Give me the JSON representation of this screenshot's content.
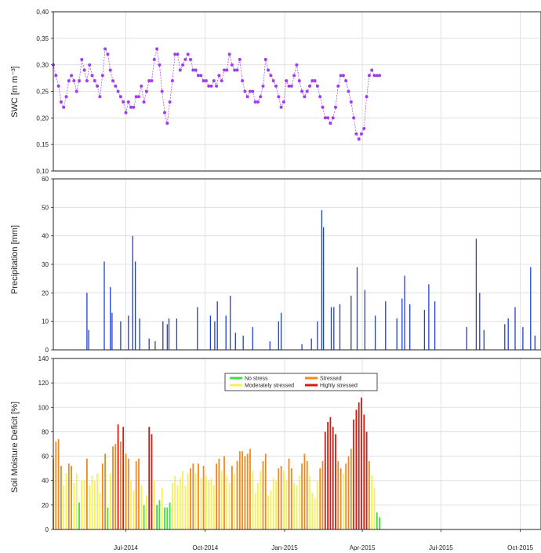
{
  "chart_data": [
    {
      "type": "scatter",
      "ylabel": "SWC [m m⁻³]",
      "ylim": [
        0.1,
        0.4
      ],
      "yticks": [
        "0,10",
        "0,15",
        "0,20",
        "0,25",
        "0,30",
        "0,35",
        "0,40"
      ],
      "xlim": [
        "2014-04-08",
        "2015-10-25"
      ],
      "color": "#a23cf0",
      "series": [
        {
          "step_days": 3,
          "values": [
            0.3,
            0.28,
            0.26,
            0.23,
            0.22,
            0.24,
            0.27,
            0.28,
            0.27,
            0.25,
            0.27,
            0.31,
            0.29,
            0.27,
            0.3,
            0.28,
            0.27,
            0.26,
            0.24,
            0.28,
            0.33,
            0.32,
            0.29,
            0.27,
            0.26,
            0.25,
            0.24,
            0.23,
            0.21,
            0.23,
            0.22,
            0.22,
            0.24,
            0.24,
            0.26,
            0.23,
            0.25,
            0.27,
            0.27,
            0.31,
            0.33,
            0.3,
            0.25,
            0.21,
            0.19,
            0.23,
            0.27,
            0.32,
            0.32,
            0.29,
            0.3,
            0.31,
            0.32,
            0.31,
            0.29,
            0.29,
            0.28,
            0.28,
            0.27,
            0.27,
            0.26,
            0.26,
            0.27,
            0.26,
            0.28,
            0.27,
            0.29,
            0.29,
            0.32,
            0.3,
            0.29,
            0.29,
            0.31,
            0.27,
            0.25,
            0.24,
            0.25,
            0.25,
            0.23,
            0.23,
            0.24,
            0.26,
            0.31,
            0.29,
            0.28,
            0.27,
            0.26,
            0.24,
            0.22,
            0.23,
            0.27,
            0.26,
            0.26,
            0.28,
            0.3,
            0.27,
            0.25,
            0.24,
            0.25,
            0.26,
            0.27,
            0.27,
            0.26,
            0.24,
            0.22,
            0.2,
            0.2,
            0.19,
            0.2,
            0.22,
            0.26,
            0.28,
            0.28,
            0.27,
            0.25,
            0.23,
            0.2,
            0.17,
            0.16,
            0.17,
            0.18,
            0.24,
            0.28,
            0.29,
            0.28,
            0.28,
            0.28
          ]
        }
      ]
    },
    {
      "type": "bar",
      "ylabel": "Precipitation [mm]",
      "ylim": [
        0,
        60
      ],
      "yticks": [
        "0",
        "10",
        "20",
        "30",
        "40",
        "50",
        "60"
      ],
      "xlim": [
        "2014-04-08",
        "2015-10-25"
      ],
      "color": "#1f3fd0",
      "events": [
        [
          "2014-05-17",
          20
        ],
        [
          "2014-05-19",
          7
        ],
        [
          "2014-06-06",
          31
        ],
        [
          "2014-06-13",
          22
        ],
        [
          "2014-06-15",
          13
        ],
        [
          "2014-06-25",
          10
        ],
        [
          "2014-07-04",
          12
        ],
        [
          "2014-07-09",
          40
        ],
        [
          "2014-07-12",
          31
        ],
        [
          "2014-07-17",
          11
        ],
        [
          "2014-07-28",
          4
        ],
        [
          "2014-08-04",
          3
        ],
        [
          "2014-08-13",
          10
        ],
        [
          "2014-08-18",
          9
        ],
        [
          "2014-08-20",
          11
        ],
        [
          "2014-08-29",
          11
        ],
        [
          "2014-09-22",
          15
        ],
        [
          "2014-10-07",
          12
        ],
        [
          "2014-10-12",
          10
        ],
        [
          "2014-10-15",
          17
        ],
        [
          "2014-10-25",
          12
        ],
        [
          "2014-10-30",
          19
        ],
        [
          "2014-11-05",
          6
        ],
        [
          "2014-11-14",
          5
        ],
        [
          "2014-11-25",
          8
        ],
        [
          "2014-12-15",
          3
        ],
        [
          "2014-12-25",
          10
        ],
        [
          "2014-12-28",
          13
        ],
        [
          "2015-01-21",
          2
        ],
        [
          "2015-02-01",
          4
        ],
        [
          "2015-02-08",
          10
        ],
        [
          "2015-02-13",
          49
        ],
        [
          "2015-02-15",
          43
        ],
        [
          "2015-02-24",
          15
        ],
        [
          "2015-02-27",
          15
        ],
        [
          "2015-03-06",
          16
        ],
        [
          "2015-03-19",
          19
        ],
        [
          "2015-03-26",
          29
        ],
        [
          "2015-04-04",
          21
        ],
        [
          "2015-04-16",
          12
        ],
        [
          "2015-04-28",
          17
        ],
        [
          "2015-05-11",
          11
        ],
        [
          "2015-05-17",
          18
        ],
        [
          "2015-05-20",
          26
        ],
        [
          "2015-05-26",
          16
        ],
        [
          "2015-06-12",
          14
        ],
        [
          "2015-06-17",
          23
        ],
        [
          "2015-06-24",
          17
        ],
        [
          "2015-07-31",
          8
        ],
        [
          "2015-08-11",
          39
        ],
        [
          "2015-08-15",
          20
        ],
        [
          "2015-08-20",
          7
        ],
        [
          "2015-09-13",
          9
        ],
        [
          "2015-09-17",
          11
        ],
        [
          "2015-09-25",
          15
        ],
        [
          "2015-10-04",
          8
        ],
        [
          "2015-10-13",
          29
        ],
        [
          "2015-10-18",
          5
        ]
      ]
    },
    {
      "type": "bar",
      "ylabel": "Soil Moisture Deficit [%]",
      "ylim": [
        0,
        140
      ],
      "yticks": [
        "0",
        "20",
        "40",
        "60",
        "80",
        "100",
        "120",
        "140"
      ],
      "xlim": [
        "2014-04-08",
        "2015-10-25"
      ],
      "xticks": [
        {
          "date": "2014-07-01",
          "label": "Jul-2014"
        },
        {
          "date": "2014-10-01",
          "label": "Oct-2014"
        },
        {
          "date": "2015-01-01",
          "label": "Jan-2015"
        },
        {
          "date": "2015-04-01",
          "label": "Apr-2015"
        },
        {
          "date": "2015-07-01",
          "label": "Jul-2015"
        },
        {
          "date": "2015-10-01",
          "label": "Oct-2015"
        }
      ],
      "legend": {
        "placement": "top",
        "entries": [
          {
            "label": "No stress",
            "color": "#3fe23a"
          },
          {
            "label": "Moderately stressed",
            "color": "#f4f05a"
          },
          {
            "label": "Stressed",
            "color": "#f08a1c"
          },
          {
            "label": "Highly stressed",
            "color": "#d91a10"
          }
        ]
      },
      "step_days": 3,
      "values": [
        58,
        72,
        74,
        52,
        36,
        46,
        54,
        52,
        38,
        46,
        22,
        40,
        40,
        58,
        36,
        44,
        40,
        46,
        30,
        54,
        62,
        18,
        46,
        68,
        70,
        86,
        72,
        84,
        62,
        58,
        40,
        32,
        56,
        58,
        36,
        20,
        28,
        84,
        78,
        40,
        20,
        24,
        34,
        18,
        18,
        22,
        38,
        44,
        36,
        42,
        48,
        36,
        46,
        50,
        54,
        46,
        54,
        42,
        52,
        44,
        40,
        42,
        36,
        54,
        58,
        48,
        60,
        44,
        38,
        52,
        46,
        56,
        64,
        64,
        60,
        62,
        66,
        48,
        30,
        38,
        48,
        56,
        62,
        28,
        32,
        42,
        40,
        50,
        52,
        48,
        40,
        58,
        50,
        38,
        36,
        44,
        54,
        62,
        56,
        44,
        30,
        26,
        40,
        50,
        56,
        80,
        88,
        92,
        84,
        78,
        56,
        50,
        46,
        54,
        60,
        66,
        90,
        98,
        104,
        108,
        94,
        80,
        56,
        44,
        34,
        14,
        10
      ]
    }
  ]
}
